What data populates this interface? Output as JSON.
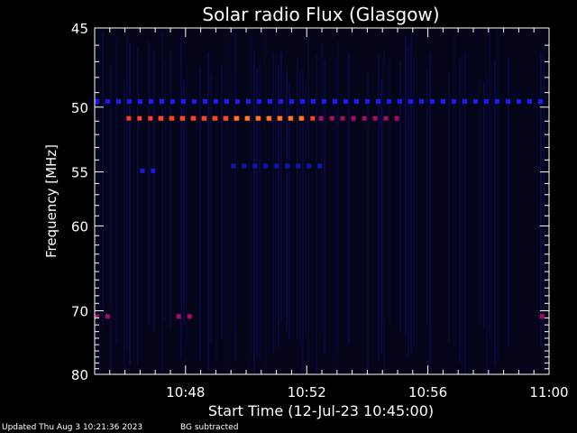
{
  "chart_data": {
    "type": "heatmap",
    "title": "Solar radio Flux (Glasgow)",
    "xlabel": "Start Time (12-Jul-23 10:45:00)",
    "ylabel": "Frequency [MHz]",
    "x_start_minutes": 0,
    "x_end_minutes": 15,
    "xticks": [
      {
        "value": 3,
        "label": "10:48"
      },
      {
        "value": 7,
        "label": "10:52"
      },
      {
        "value": 11,
        "label": "10:56"
      },
      {
        "value": 15,
        "label": "11:00"
      }
    ],
    "yticks": [
      45,
      50,
      55,
      60,
      70,
      80
    ],
    "ylim": [
      45,
      80
    ],
    "y_scale": "reciprocal",
    "background_color": "#000000",
    "foreground_color": "#ffffff",
    "colormap": [
      "#05051a",
      "#0a0a66",
      "#1a1aff",
      "#7700bb",
      "#cc1030",
      "#ff4420",
      "#ff9a20"
    ],
    "features": [
      {
        "type": "band",
        "freq": 49.6,
        "t_start": 0.0,
        "t_end": 15.0,
        "level": 0.34
      },
      {
        "type": "band",
        "freq": 50.8,
        "t_start": 1.05,
        "t_end": 7.4,
        "level": 0.82
      },
      {
        "type": "band",
        "freq": 50.8,
        "t_start": 2.1,
        "t_end": 4.6,
        "level": 0.83
      },
      {
        "type": "band",
        "freq": 50.8,
        "t_start": 4.6,
        "t_end": 6.95,
        "level": 0.93
      },
      {
        "type": "band",
        "freq": 50.8,
        "t_start": 7.4,
        "t_end": 10.25,
        "level": 0.6
      },
      {
        "type": "band",
        "freq": 54.5,
        "t_start": 4.5,
        "t_end": 7.5,
        "level": 0.25
      },
      {
        "type": "band",
        "freq": 54.9,
        "t_start": 1.5,
        "t_end": 2.0,
        "level": 0.3
      },
      {
        "type": "band",
        "freq": 70.8,
        "t_start": 0.0,
        "t_end": 0.5,
        "level": 0.6
      },
      {
        "type": "band",
        "freq": 70.8,
        "t_start": 2.7,
        "t_end": 3.3,
        "level": 0.6
      },
      {
        "type": "band",
        "freq": 70.8,
        "t_start": 14.7,
        "t_end": 15.0,
        "level": 0.6
      }
    ]
  },
  "footer": {
    "updated": "Updated Thu Aug  3 10:21:36 2023",
    "bg_note": "BG subtracted"
  }
}
